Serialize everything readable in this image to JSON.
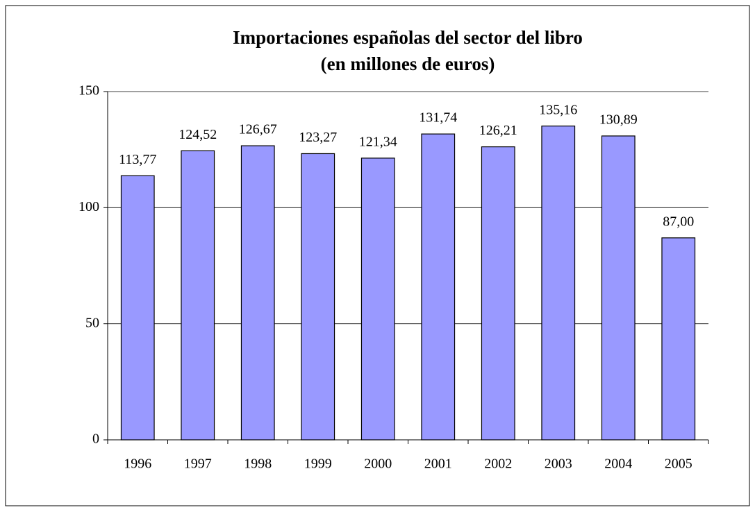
{
  "chart_data": {
    "type": "bar",
    "title": [
      "Importaciones españolas del sector del libro",
      "(en millones de euros)"
    ],
    "categories": [
      "1996",
      "1997",
      "1998",
      "1999",
      "2000",
      "2001",
      "2002",
      "2003",
      "2004",
      "2005"
    ],
    "values": [
      113.77,
      124.52,
      126.67,
      123.27,
      121.34,
      131.74,
      126.21,
      135.16,
      130.89,
      87.0
    ],
    "value_labels": [
      "113,77",
      "124,52",
      "126,67",
      "123,27",
      "121,34",
      "131,74",
      "126,21",
      "135,16",
      "130,89",
      "87,00"
    ],
    "color": "#9999ff",
    "ylim": [
      0,
      150
    ],
    "yticks": [
      0,
      50,
      100,
      150
    ],
    "grid": true
  }
}
